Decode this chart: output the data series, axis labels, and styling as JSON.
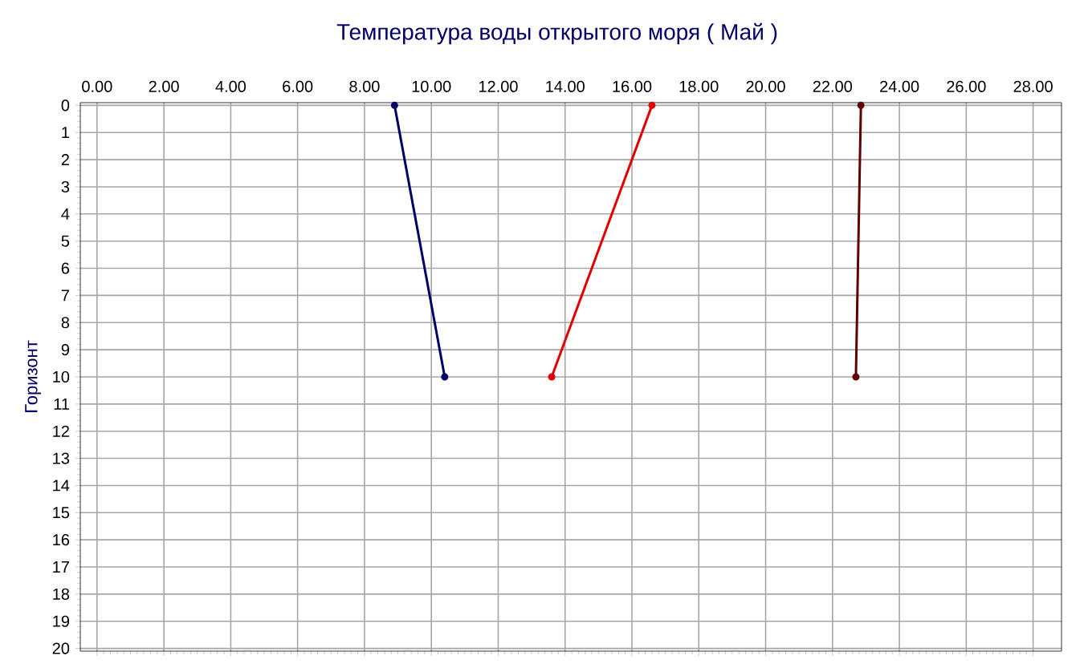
{
  "chart_data": {
    "type": "line",
    "title": "Температура воды открытого моря     ( Май )",
    "ylabel": "Горизонт",
    "series": [
      {
        "color": "#000066",
        "x": [
          8.9,
          10.4
        ],
        "values": [
          0,
          10
        ]
      },
      {
        "color": "#e00000",
        "x": [
          16.6,
          13.6
        ],
        "values": [
          0,
          10
        ]
      },
      {
        "color": "#600000",
        "x": [
          22.85,
          22.7
        ],
        "values": [
          0,
          10
        ]
      }
    ],
    "xlim": [
      -0.5,
      28.85
    ],
    "ylim": [
      20.1,
      -0.1
    ],
    "xticks": [
      {
        "value": 0,
        "label": "0.00"
      },
      {
        "value": 2,
        "label": "2.00"
      },
      {
        "value": 4,
        "label": "4.00"
      },
      {
        "value": 6,
        "label": "6.00"
      },
      {
        "value": 8,
        "label": "8.00"
      },
      {
        "value": 10,
        "label": "10.00"
      },
      {
        "value": 12,
        "label": "12.00"
      },
      {
        "value": 14,
        "label": "14.00"
      },
      {
        "value": 16,
        "label": "16.00"
      },
      {
        "value": 18,
        "label": "18.00"
      },
      {
        "value": 20,
        "label": "20.00"
      },
      {
        "value": 22,
        "label": "22.00"
      },
      {
        "value": 24,
        "label": "24.00"
      },
      {
        "value": 26,
        "label": "26.00"
      },
      {
        "value": 28,
        "label": "28.00"
      }
    ],
    "yticks": [
      0,
      1,
      2,
      3,
      4,
      5,
      6,
      7,
      8,
      9,
      10,
      11,
      12,
      13,
      14,
      15,
      16,
      17,
      18,
      19,
      20
    ],
    "grid": true,
    "marker": "circle",
    "line_style": "solid"
  }
}
